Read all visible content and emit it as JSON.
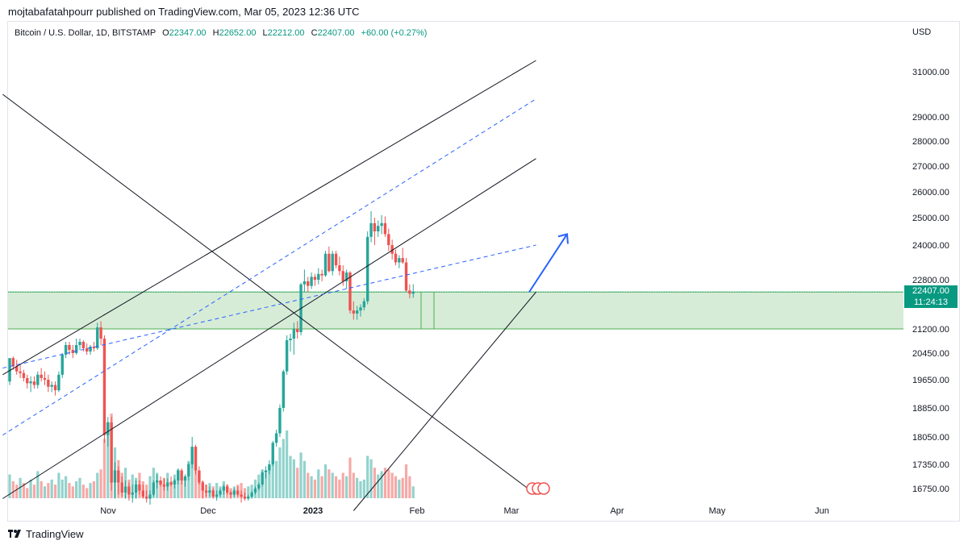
{
  "header": {
    "published": "mojtabafatahpourr published on TradingView.com, Mar 05, 2023 12:36 UTC"
  },
  "legend": {
    "symbol": "Bitcoin / U.S. Dollar, 1D, BITSTAMP",
    "o_label": "O",
    "o": "22347.00",
    "h_label": "H",
    "h": "22652.00",
    "l_label": "L",
    "l": "22212.00",
    "c_label": "C",
    "c": "22407.00",
    "change": "+60.00 (+0.27%)"
  },
  "price_tag": {
    "price": "22407.00",
    "countdown": "11:24:13"
  },
  "footer": {
    "brand": "TradingView"
  },
  "colors": {
    "up": "#26a69a",
    "down": "#ef5350",
    "up_vol": "#92d3cc",
    "down_vol": "#f7a9a7",
    "zone": "#c8e6c9",
    "zone_line": "#4caf50",
    "trend": "#131722",
    "dashed": "#2962ff",
    "arrow": "#2962ff"
  },
  "chart_data": {
    "type": "candlestick",
    "currency_label": "USD",
    "price_ticks": [
      "31000.00",
      "29000.00",
      "28000.00",
      "27000.00",
      "26000.00",
      "25000.00",
      "24000.00",
      "22800.00",
      "21200.00",
      "20450.00",
      "19650.00",
      "18850.00",
      "18050.00",
      "17350.00",
      "16750.00"
    ],
    "time_ticks": [
      "Nov",
      "Dec",
      "2023",
      "Feb",
      "Mar",
      "Apr",
      "May",
      "Jun"
    ],
    "support_zone": [
      21200,
      22400
    ],
    "last_price": 22407,
    "projection_arrow": {
      "from": [
        12,
        22400
      ],
      "to": [
        16,
        24400
      ]
    },
    "candles": [
      [
        19600,
        20300,
        19500,
        20300
      ],
      [
        20300,
        20350,
        19950,
        20050
      ],
      [
        20050,
        20250,
        19800,
        19900
      ],
      [
        19900,
        20100,
        19700,
        19850
      ],
      [
        19850,
        19950,
        19600,
        19700
      ],
      [
        19700,
        19800,
        19400,
        19550
      ],
      [
        19550,
        19750,
        19300,
        19600
      ],
      [
        19600,
        19750,
        19400,
        19500
      ],
      [
        19500,
        19900,
        19400,
        19800
      ],
      [
        19800,
        20000,
        19600,
        19700
      ],
      [
        19700,
        19900,
        19500,
        19650
      ],
      [
        19650,
        19800,
        19300,
        19450
      ],
      [
        19450,
        19600,
        19300,
        19500
      ],
      [
        19500,
        19600,
        19200,
        19350
      ],
      [
        19350,
        19900,
        19300,
        19800
      ],
      [
        19800,
        20450,
        19700,
        20400
      ],
      [
        20400,
        20800,
        20300,
        20700
      ],
      [
        20700,
        20800,
        20400,
        20550
      ],
      [
        20550,
        20700,
        20300,
        20450
      ],
      [
        20450,
        20900,
        20400,
        20700
      ],
      [
        20700,
        20900,
        20550,
        20800
      ],
      [
        20800,
        20850,
        20500,
        20600
      ],
      [
        20600,
        20750,
        20400,
        20500
      ],
      [
        20500,
        20700,
        20400,
        20650
      ],
      [
        20650,
        20800,
        20500,
        20600
      ],
      [
        20600,
        21400,
        20550,
        21250
      ],
      [
        21250,
        21450,
        20700,
        20900
      ],
      [
        20900,
        21000,
        17900,
        18100
      ],
      [
        18100,
        18600,
        17800,
        18450
      ],
      [
        18450,
        18600,
        16700,
        16900
      ],
      [
        16900,
        17400,
        16500,
        17200
      ],
      [
        17200,
        17300,
        16600,
        16900
      ],
      [
        16900,
        17050,
        16550,
        16650
      ],
      [
        16650,
        16950,
        16500,
        16800
      ],
      [
        16800,
        16900,
        16450,
        16600
      ],
      [
        16600,
        16850,
        16400,
        16650
      ],
      [
        16650,
        16950,
        16500,
        16850
      ],
      [
        16850,
        16950,
        16600,
        16700
      ],
      [
        16700,
        16850,
        16500,
        16550
      ],
      [
        16550,
        16700,
        16400,
        16500
      ],
      [
        16500,
        16700,
        16350,
        16600
      ],
      [
        16600,
        16950,
        16550,
        16900
      ],
      [
        16900,
        17100,
        16750,
        16950
      ],
      [
        16950,
        17050,
        16800,
        16850
      ],
      [
        16850,
        17000,
        16700,
        16800
      ],
      [
        16800,
        17000,
        16700,
        16900
      ],
      [
        16900,
        17050,
        16800,
        16850
      ],
      [
        16850,
        17000,
        16750,
        16950
      ],
      [
        16950,
        17250,
        16850,
        17200
      ],
      [
        17200,
        17250,
        16850,
        16950
      ],
      [
        16950,
        17100,
        16800,
        17050
      ],
      [
        17050,
        17400,
        16950,
        17350
      ],
      [
        17350,
        18050,
        17250,
        17800
      ],
      [
        17800,
        17850,
        17100,
        17200
      ],
      [
        17200,
        17300,
        16850,
        16900
      ],
      [
        16900,
        16950,
        16500,
        16700
      ],
      [
        16700,
        16850,
        16550,
        16650
      ],
      [
        16650,
        16800,
        16550,
        16700
      ],
      [
        16700,
        16750,
        16500,
        16550
      ],
      [
        16550,
        16700,
        16450,
        16600
      ],
      [
        16600,
        16750,
        16550,
        16700
      ],
      [
        16700,
        16850,
        16600,
        16800
      ],
      [
        16800,
        16850,
        16600,
        16650
      ],
      [
        16650,
        16700,
        16500,
        16600
      ],
      [
        16600,
        16750,
        16550,
        16700
      ],
      [
        16700,
        16800,
        16550,
        16600
      ],
      [
        16600,
        16700,
        16400,
        16550
      ],
      [
        16550,
        16650,
        16450,
        16500
      ],
      [
        16500,
        16600,
        16450,
        16550
      ],
      [
        16550,
        16700,
        16500,
        16650
      ],
      [
        16650,
        16800,
        16600,
        16750
      ],
      [
        16750,
        16900,
        16700,
        16850
      ],
      [
        16850,
        17200,
        16800,
        17150
      ],
      [
        17150,
        17300,
        17000,
        17200
      ],
      [
        17200,
        17450,
        17100,
        17350
      ],
      [
        17350,
        17950,
        17300,
        17900
      ],
      [
        17900,
        18250,
        17800,
        18150
      ],
      [
        18150,
        18950,
        18050,
        18850
      ],
      [
        18850,
        19950,
        18750,
        19900
      ],
      [
        19900,
        21000,
        19800,
        20850
      ],
      [
        20850,
        21050,
        20500,
        20900
      ],
      [
        20900,
        21400,
        20400,
        21200
      ],
      [
        21200,
        21450,
        20900,
        21100
      ],
      [
        21100,
        22700,
        21000,
        22650
      ],
      [
        22650,
        23150,
        22400,
        22750
      ],
      [
        22750,
        22900,
        22400,
        22600
      ],
      [
        22600,
        23050,
        22500,
        22900
      ],
      [
        22900,
        23000,
        22600,
        22800
      ],
      [
        22800,
        23200,
        22650,
        23000
      ],
      [
        23000,
        23150,
        22750,
        22950
      ],
      [
        22950,
        23800,
        22900,
        23700
      ],
      [
        23700,
        23950,
        23050,
        23100
      ],
      [
        23100,
        23800,
        22950,
        23700
      ],
      [
        23700,
        23800,
        23200,
        23300
      ],
      [
        23300,
        23600,
        22950,
        23100
      ],
      [
        23100,
        23300,
        22600,
        22750
      ],
      [
        22750,
        23150,
        22500,
        23050
      ],
      [
        23050,
        23100,
        21700,
        21800
      ],
      [
        21800,
        22100,
        21500,
        21700
      ],
      [
        21700,
        21950,
        21500,
        21800
      ],
      [
        21800,
        22000,
        21600,
        21900
      ],
      [
        21900,
        22200,
        21800,
        22100
      ],
      [
        22100,
        24500,
        22000,
        24300
      ],
      [
        24300,
        25250,
        24100,
        24800
      ],
      [
        24800,
        25000,
        24000,
        24500
      ],
      [
        24500,
        24900,
        24300,
        24700
      ],
      [
        24700,
        25100,
        24400,
        24800
      ],
      [
        24800,
        25050,
        24300,
        24400
      ],
      [
        24400,
        24600,
        23800,
        24000
      ],
      [
        24000,
        24200,
        23500,
        23700
      ],
      [
        23700,
        23850,
        23300,
        23400
      ],
      [
        23400,
        23650,
        23200,
        23550
      ],
      [
        23550,
        23900,
        23350,
        23400
      ],
      [
        23400,
        23550,
        22400,
        22450
      ],
      [
        22450,
        22650,
        22200,
        22347
      ],
      [
        22347,
        22652,
        22212,
        22407
      ]
    ],
    "volumes": [
      [
        0.28,
        0
      ],
      [
        0.2,
        1
      ],
      [
        0.16,
        1
      ],
      [
        0.24,
        0
      ],
      [
        0.18,
        1
      ],
      [
        0.12,
        1
      ],
      [
        0.22,
        0
      ],
      [
        0.16,
        1
      ],
      [
        0.32,
        0
      ],
      [
        0.2,
        1
      ],
      [
        0.14,
        0
      ],
      [
        0.18,
        1
      ],
      [
        0.22,
        0
      ],
      [
        0.16,
        1
      ],
      [
        0.3,
        0
      ],
      [
        0.22,
        0
      ],
      [
        0.26,
        0
      ],
      [
        0.18,
        1
      ],
      [
        0.14,
        1
      ],
      [
        0.2,
        0
      ],
      [
        0.24,
        0
      ],
      [
        0.16,
        1
      ],
      [
        0.12,
        1
      ],
      [
        0.18,
        0
      ],
      [
        0.2,
        1
      ],
      [
        0.3,
        0
      ],
      [
        0.34,
        1
      ],
      [
        0.7,
        1
      ],
      [
        0.9,
        0
      ],
      [
        1.0,
        1
      ],
      [
        0.6,
        0
      ],
      [
        0.45,
        1
      ],
      [
        0.3,
        1
      ],
      [
        0.36,
        0
      ],
      [
        0.22,
        1
      ],
      [
        0.28,
        0
      ],
      [
        0.24,
        0
      ],
      [
        0.3,
        1
      ],
      [
        0.2,
        1
      ],
      [
        0.16,
        1
      ],
      [
        0.26,
        0
      ],
      [
        0.36,
        0
      ],
      [
        0.3,
        0
      ],
      [
        0.2,
        1
      ],
      [
        0.24,
        1
      ],
      [
        0.3,
        0
      ],
      [
        0.2,
        1
      ],
      [
        0.28,
        0
      ],
      [
        0.34,
        0
      ],
      [
        0.22,
        1
      ],
      [
        0.26,
        0
      ],
      [
        0.44,
        0
      ],
      [
        0.5,
        0
      ],
      [
        0.36,
        1
      ],
      [
        0.28,
        1
      ],
      [
        0.2,
        1
      ],
      [
        0.16,
        1
      ],
      [
        0.18,
        0
      ],
      [
        0.14,
        1
      ],
      [
        0.18,
        0
      ],
      [
        0.14,
        0
      ],
      [
        0.2,
        0
      ],
      [
        0.16,
        1
      ],
      [
        0.12,
        1
      ],
      [
        0.14,
        0
      ],
      [
        0.16,
        1
      ],
      [
        0.18,
        1
      ],
      [
        0.12,
        1
      ],
      [
        0.14,
        0
      ],
      [
        0.16,
        0
      ],
      [
        0.22,
        0
      ],
      [
        0.28,
        0
      ],
      [
        0.34,
        0
      ],
      [
        0.3,
        0
      ],
      [
        0.38,
        0
      ],
      [
        0.5,
        0
      ],
      [
        0.44,
        0
      ],
      [
        0.6,
        0
      ],
      [
        0.7,
        0
      ],
      [
        0.8,
        0
      ],
      [
        0.5,
        0
      ],
      [
        0.46,
        0
      ],
      [
        0.36,
        1
      ],
      [
        0.54,
        0
      ],
      [
        0.44,
        0
      ],
      [
        0.3,
        1
      ],
      [
        0.26,
        0
      ],
      [
        0.22,
        1
      ],
      [
        0.34,
        0
      ],
      [
        0.26,
        1
      ],
      [
        0.4,
        0
      ],
      [
        0.34,
        1
      ],
      [
        0.3,
        0
      ],
      [
        0.26,
        1
      ],
      [
        0.22,
        1
      ],
      [
        0.3,
        1
      ],
      [
        0.26,
        0
      ],
      [
        0.48,
        1
      ],
      [
        0.3,
        1
      ],
      [
        0.24,
        0
      ],
      [
        0.2,
        0
      ],
      [
        0.22,
        0
      ],
      [
        0.5,
        0
      ],
      [
        0.46,
        0
      ],
      [
        0.36,
        1
      ],
      [
        0.28,
        0
      ],
      [
        0.32,
        0
      ],
      [
        0.36,
        1
      ],
      [
        0.34,
        1
      ],
      [
        0.3,
        1
      ],
      [
        0.26,
        1
      ],
      [
        0.22,
        0
      ],
      [
        0.24,
        1
      ],
      [
        0.4,
        1
      ],
      [
        0.26,
        1
      ],
      [
        0.14,
        0
      ]
    ],
    "trendlines": [
      {
        "name": "upper-channel",
        "from": [
          -2,
          19800
        ],
        "to": [
          150,
          31500
        ],
        "style": "solid"
      },
      {
        "name": "lower-channel",
        "from": [
          -2,
          16500
        ],
        "to": [
          150,
          27300
        ],
        "style": "solid"
      },
      {
        "name": "descending",
        "from": [
          -2,
          30000
        ],
        "to": [
          150,
          16600
        ],
        "style": "solid"
      },
      {
        "name": "rising-right",
        "from": [
          98,
          16200
        ],
        "to": [
          150,
          22400
        ],
        "style": "solid"
      },
      {
        "name": "mid-dashed",
        "from": [
          -2,
          18100
        ],
        "to": [
          150,
          29800
        ],
        "style": "dashed"
      },
      {
        "name": "desc-dashed",
        "from": [
          -2,
          20000
        ],
        "to": [
          150,
          24000
        ],
        "style": "dashed"
      }
    ]
  }
}
